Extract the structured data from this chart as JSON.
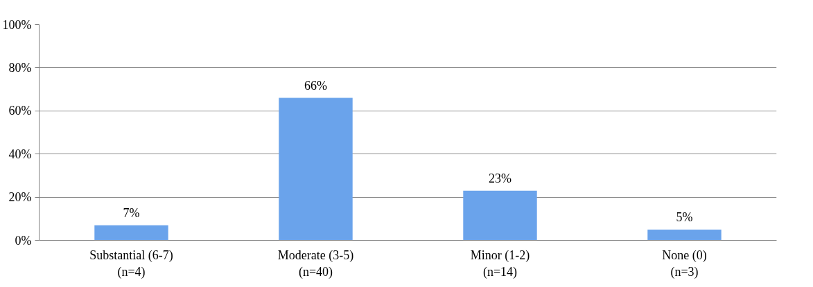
{
  "chart_data": {
    "type": "bar",
    "categories": [
      "Substantial (6-7)\n(n=4)",
      "Moderate (3-5)\n(n=40)",
      "Minor (1-2)\n(n=14)",
      "None (0)\n(n=3)"
    ],
    "values": [
      7,
      66,
      23,
      5
    ],
    "value_labels": [
      "7%",
      "66%",
      "23%",
      "5%"
    ],
    "color": "#6aa3eb",
    "ylim": [
      0,
      100
    ],
    "yticks": [
      {
        "value": 0,
        "label": "0%"
      },
      {
        "value": 20,
        "label": "20%"
      },
      {
        "value": 40,
        "label": "40%"
      },
      {
        "value": 60,
        "label": "60%"
      },
      {
        "value": 80,
        "label": "80%"
      },
      {
        "value": 100,
        "label": "100%"
      }
    ],
    "grid": "y"
  }
}
